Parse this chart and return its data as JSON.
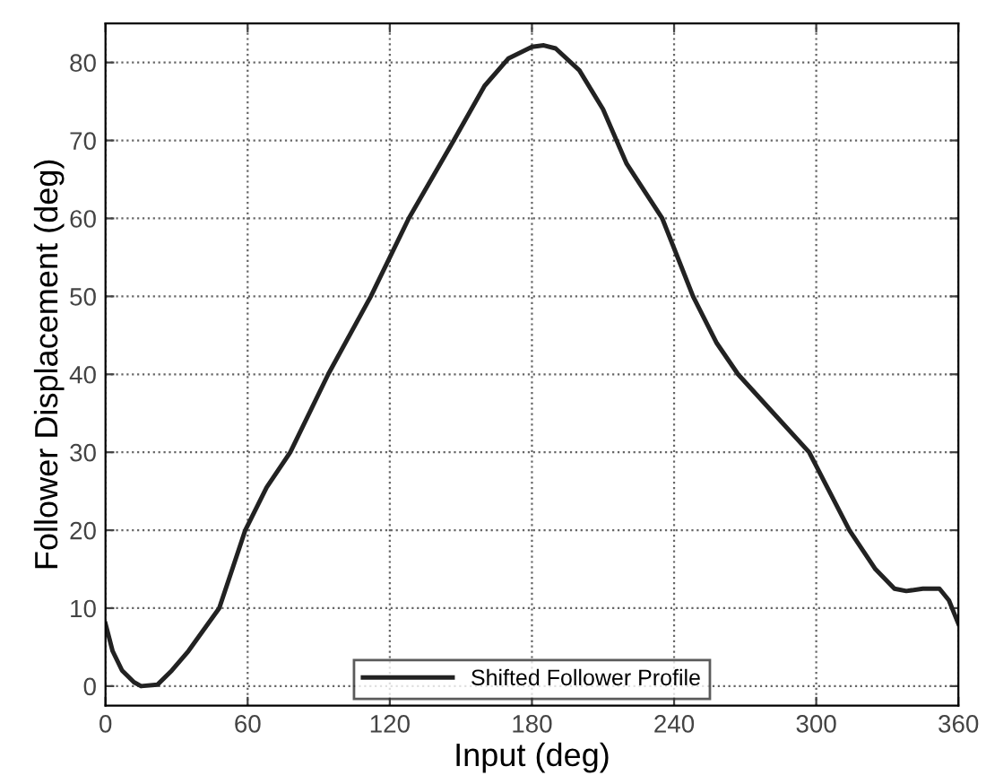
{
  "chart_data": {
    "type": "line",
    "xlabel": "Input (deg)",
    "ylabel": "Follower Displacement (deg)",
    "xlim": [
      0,
      360
    ],
    "xticks": [
      0,
      60,
      120,
      180,
      240,
      300,
      360
    ],
    "ylim": [
      -2.5,
      85
    ],
    "yticks": [
      0,
      10,
      20,
      30,
      40,
      50,
      60,
      70,
      80
    ],
    "grid": true,
    "legend": "bottom",
    "line_style": "solid",
    "series": [
      {
        "name": "Shifted Follower Profile",
        "color": "#222222",
        "x": [
          0,
          3,
          7,
          12,
          15,
          22,
          28,
          35,
          48,
          59,
          68,
          78,
          94,
          112,
          128,
          147,
          160,
          170,
          180,
          185,
          190,
          200,
          210,
          220,
          235,
          248,
          258,
          267,
          282,
          297,
          314,
          325,
          333,
          338,
          345,
          352,
          356,
          360
        ],
        "values": [
          8,
          4.5,
          2,
          0.5,
          0,
          0.2,
          2,
          4.5,
          10,
          20,
          25.5,
          30,
          40,
          50,
          60,
          70,
          77,
          80.5,
          82,
          82.2,
          81.8,
          79,
          74,
          67,
          60,
          50,
          44,
          40,
          35,
          30,
          20,
          15,
          12.5,
          12.2,
          12.5,
          12.5,
          11,
          8
        ]
      }
    ]
  }
}
